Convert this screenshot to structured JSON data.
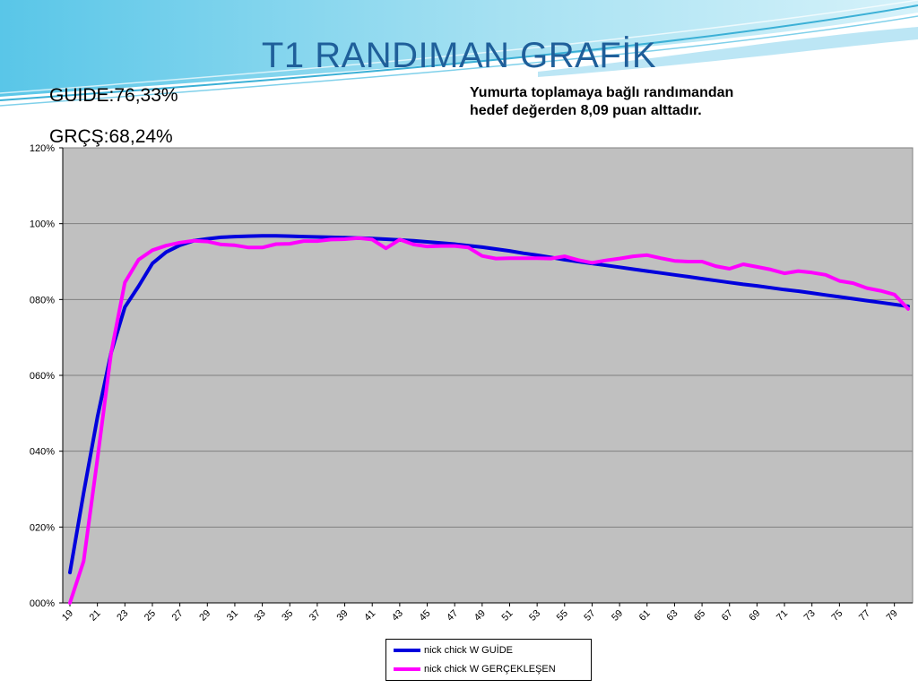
{
  "slide": {
    "title": "T1 RANDIMAN GRAFİK",
    "stats": [
      "GUIDE:76,33%",
      "GRÇŞ:68,24%"
    ],
    "note_lines": [
      "Yumurta toplamaya bağlı  randımandan",
      "hedef değerden 8,09 puan alttadır."
    ]
  },
  "colors": {
    "title": "#1f5f9a",
    "plot_bg": "#c0c0c0",
    "guide": "#0000dd",
    "actual": "#ff00ff",
    "grid": "#808080"
  },
  "chart_data": {
    "type": "line",
    "x": [
      19,
      20,
      21,
      22,
      23,
      24,
      25,
      26,
      27,
      28,
      29,
      30,
      31,
      32,
      33,
      34,
      35,
      36,
      37,
      38,
      39,
      40,
      41,
      42,
      43,
      44,
      45,
      46,
      47,
      48,
      49,
      50,
      51,
      52,
      53,
      54,
      55,
      56,
      57,
      58,
      59,
      60,
      61,
      62,
      63,
      64,
      65,
      66,
      67,
      68,
      69,
      70,
      71,
      72,
      73,
      74,
      75,
      76,
      77,
      78,
      79,
      80
    ],
    "x_tick_labels": [
      "19",
      "21",
      "23",
      "25",
      "27",
      "29",
      "31",
      "33",
      "35",
      "37",
      "39",
      "41",
      "43",
      "45",
      "47",
      "49",
      "51",
      "53",
      "55",
      "57",
      "59",
      "61",
      "63",
      "65",
      "67",
      "69",
      "71",
      "73",
      "75",
      "77",
      "79"
    ],
    "y_tick_labels": [
      "000%",
      "020%",
      "040%",
      "060%",
      "080%",
      "100%",
      "120%"
    ],
    "ylim": [
      0,
      120
    ],
    "grid": true,
    "legend_position": "bottom",
    "series": [
      {
        "name": "nick chick W GUİDE",
        "values": [
          8.0,
          29.0,
          49.0,
          66.0,
          78.0,
          83.5,
          89.5,
          92.5,
          94.3,
          95.5,
          96.0,
          96.4,
          96.6,
          96.7,
          96.8,
          96.8,
          96.7,
          96.6,
          96.5,
          96.4,
          96.3,
          96.2,
          96.1,
          95.9,
          95.7,
          95.5,
          95.2,
          94.9,
          94.6,
          94.2,
          93.8,
          93.3,
          92.8,
          92.2,
          91.7,
          91.1,
          90.5,
          90.0,
          89.5,
          89.0,
          88.5,
          88.0,
          87.5,
          87.0,
          86.5,
          86.0,
          85.5,
          85.0,
          84.5,
          84.0,
          83.6,
          83.1,
          82.6,
          82.2,
          81.7,
          81.2,
          80.7,
          80.2,
          79.7,
          79.2,
          78.7,
          78.2
        ]
      },
      {
        "name": "nick chick W GERÇEKLEŞEN",
        "values": [
          0.0,
          11.0,
          38.0,
          66.0,
          84.5,
          90.5,
          93.0,
          94.2,
          95.0,
          95.5,
          95.3,
          94.5,
          94.3,
          93.7,
          93.7,
          94.6,
          94.7,
          95.4,
          95.4,
          95.8,
          95.9,
          96.2,
          95.8,
          93.5,
          95.8,
          94.5,
          94.0,
          94.1,
          94.1,
          93.7,
          91.5,
          90.8,
          90.9,
          90.9,
          90.9,
          90.8,
          91.4,
          90.4,
          89.7,
          90.3,
          90.8,
          91.4,
          91.7,
          90.9,
          90.2,
          90.0,
          90.0,
          88.8,
          88.1,
          89.3,
          88.6,
          87.9,
          86.9,
          87.5,
          87.1,
          86.5,
          84.9,
          84.3,
          83.0,
          82.3,
          81.3,
          77.5
        ]
      }
    ]
  }
}
